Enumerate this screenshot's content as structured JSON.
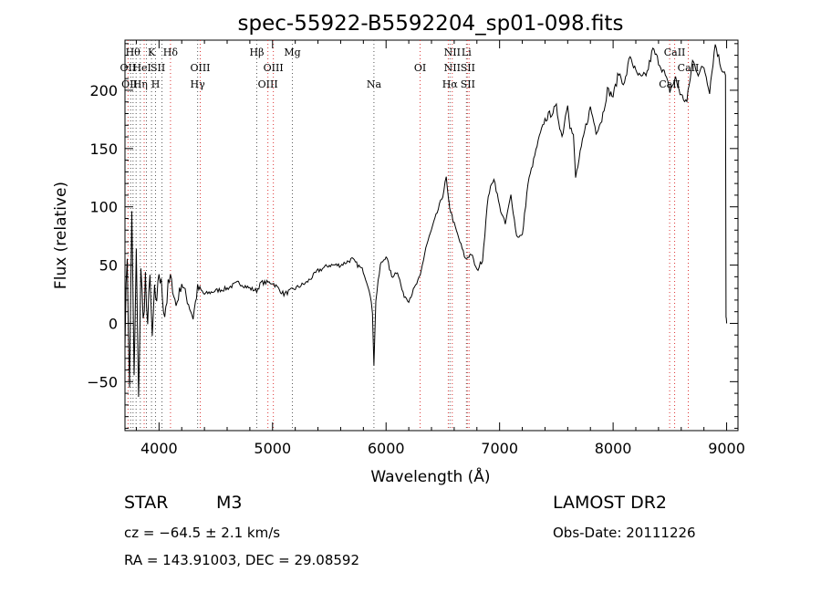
{
  "chart_data": {
    "type": "line",
    "title": "spec-55922-B5592204_sp01-098.fits",
    "xlabel": "Wavelength (Å)",
    "ylabel": "Flux (relative)",
    "xlim": [
      3700,
      9100
    ],
    "ylim": [
      -92,
      243
    ],
    "xticks": [
      4000,
      5000,
      6000,
      7000,
      8000,
      9000
    ],
    "yticks": [
      -50,
      0,
      50,
      100,
      150,
      200
    ],
    "series": [
      {
        "color": "#000000",
        "x": [
          3700,
          3720,
          3740,
          3760,
          3780,
          3800,
          3820,
          3840,
          3860,
          3880,
          3900,
          3920,
          3940,
          3960,
          3980,
          4000,
          4050,
          4100,
          4150,
          4200,
          4250,
          4300,
          4340,
          4400,
          4500,
          4600,
          4700,
          4800,
          4860,
          4900,
          5000,
          5100,
          5200,
          5300,
          5400,
          5500,
          5600,
          5700,
          5800,
          5850,
          5880,
          5893,
          5910,
          5950,
          6000,
          6050,
          6100,
          6150,
          6200,
          6250,
          6300,
          6350,
          6400,
          6450,
          6500,
          6530,
          6550,
          6560,
          6600,
          6650,
          6700,
          6750,
          6800,
          6850,
          6900,
          6950,
          7000,
          7050,
          7100,
          7150,
          7200,
          7250,
          7300,
          7350,
          7400,
          7450,
          7500,
          7550,
          7600,
          7620,
          7650,
          7670,
          7700,
          7750,
          7800,
          7850,
          7900,
          7950,
          8000,
          8050,
          8100,
          8150,
          8200,
          8250,
          8300,
          8350,
          8400,
          8450,
          8500,
          8550,
          8600,
          8650,
          8700,
          8750,
          8800,
          8850,
          8900,
          8950,
          8990,
          8995,
          9000
        ],
        "y": [
          -10,
          60,
          -60,
          100,
          -50,
          60,
          -70,
          50,
          0,
          40,
          -10,
          50,
          -20,
          30,
          10,
          45,
          10,
          40,
          15,
          35,
          20,
          5,
          30,
          25,
          28,
          30,
          35,
          30,
          28,
          35,
          35,
          25,
          30,
          35,
          45,
          50,
          50,
          55,
          45,
          30,
          10,
          -35,
          20,
          50,
          58,
          40,
          45,
          25,
          20,
          30,
          40,
          65,
          80,
          95,
          110,
          125,
          105,
          100,
          85,
          70,
          55,
          60,
          45,
          55,
          110,
          125,
          100,
          85,
          110,
          75,
          75,
          120,
          140,
          160,
          175,
          180,
          185,
          160,
          190,
          170,
          160,
          125,
          140,
          165,
          185,
          165,
          175,
          200,
          195,
          215,
          205,
          230,
          215,
          210,
          215,
          235,
          225,
          215,
          200,
          210,
          195,
          190,
          225,
          215,
          220,
          200,
          240,
          220,
          215,
          5,
          0
        ]
      }
    ],
    "lines_top": [
      "Hθ",
      "K",
      "Hδ",
      "Hβ",
      "Mg",
      "NII",
      "Li",
      "CaII"
    ],
    "lines_mid": [
      "OII",
      "HeI",
      "SII",
      "OIII",
      "OIII",
      "OI",
      "NII",
      "SII",
      "CaII"
    ],
    "lines_bot": [
      "OII",
      "Hη",
      "H",
      "Hγ",
      "OIII",
      "Na",
      "Hα",
      "SII",
      "CaII"
    ],
    "grid": false,
    "legend": "none"
  },
  "info": {
    "object_class": "STAR",
    "subclass": "M3",
    "survey": "LAMOST DR2",
    "cz": "cz = −64.5 ± 2.1 km/s",
    "obs_date": "Obs-Date: 20111226",
    "coords": "RA = 143.91003, DEC =  29.08592"
  }
}
